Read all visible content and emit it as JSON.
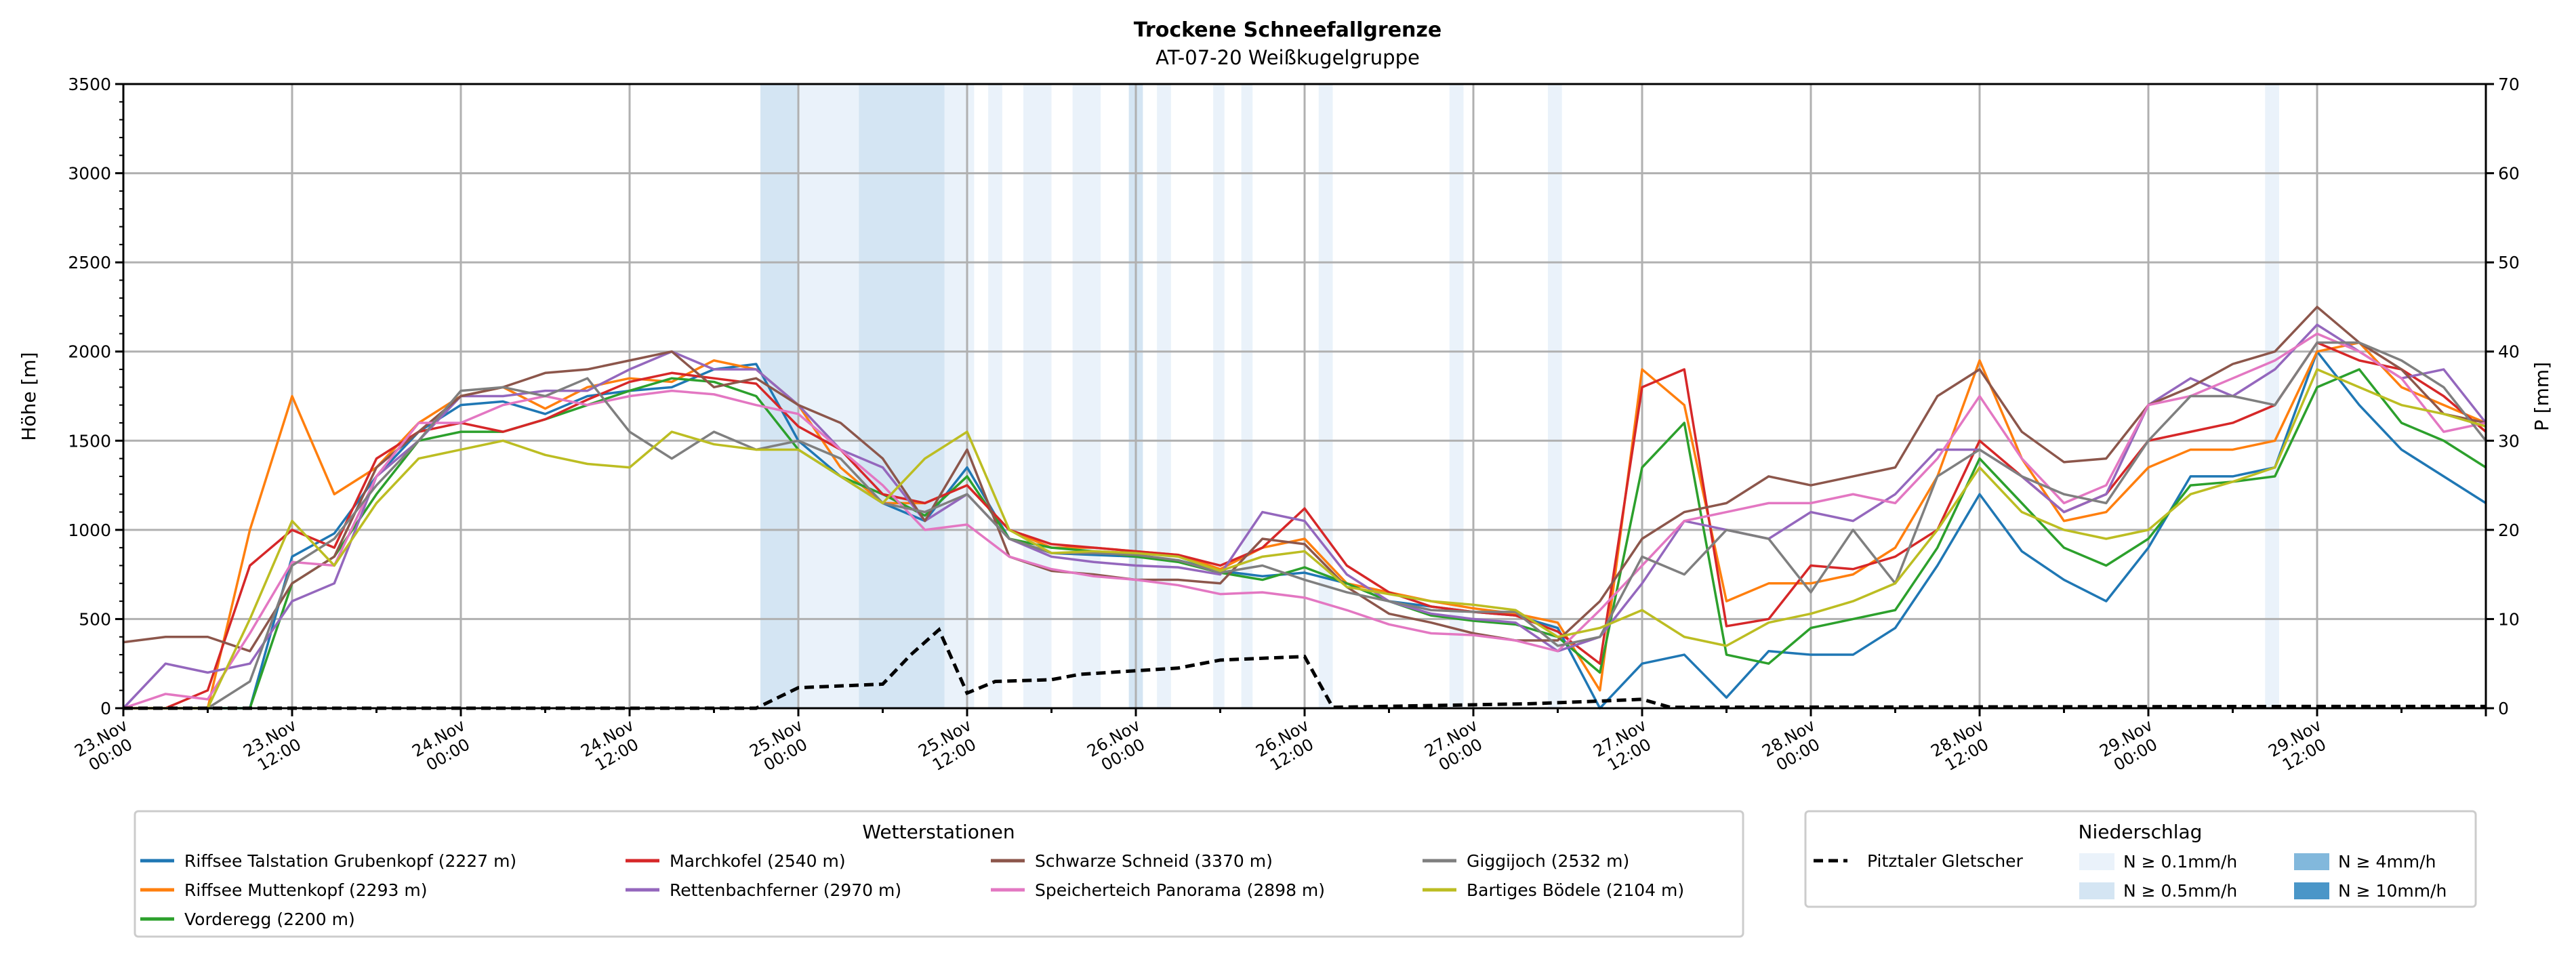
{
  "chart_data": {
    "type": "line",
    "title": "Trockene Schneefallgrenze",
    "subtitle": "AT-07-20 Weißkugelgruppe",
    "ylabel": "Höhe [m]",
    "ylabel_right": "P [mm]",
    "ylim": [
      0,
      3500
    ],
    "ylim_right": [
      0,
      70
    ],
    "yticks": [
      0,
      500,
      1000,
      1500,
      2000,
      2500,
      3000,
      3500
    ],
    "yticks_right": [
      0,
      10,
      20,
      30,
      40,
      50,
      60,
      70
    ],
    "x_unit": "hours since 23.Nov 00:00",
    "xlim": [
      0,
      168
    ],
    "xticks": [
      {
        "h": 0,
        "l1": "23.Nov",
        "l2": "00:00"
      },
      {
        "h": 12,
        "l1": "23.Nov",
        "l2": "12:00"
      },
      {
        "h": 24,
        "l1": "24.Nov",
        "l2": "00:00"
      },
      {
        "h": 36,
        "l1": "24.Nov",
        "l2": "12:00"
      },
      {
        "h": 48,
        "l1": "25.Nov",
        "l2": "00:00"
      },
      {
        "h": 60,
        "l1": "25.Nov",
        "l2": "12:00"
      },
      {
        "h": 72,
        "l1": "26.Nov",
        "l2": "00:00"
      },
      {
        "h": 84,
        "l1": "26.Nov",
        "l2": "12:00"
      },
      {
        "h": 96,
        "l1": "27.Nov",
        "l2": "00:00"
      },
      {
        "h": 108,
        "l1": "27.Nov",
        "l2": "12:00"
      },
      {
        "h": 120,
        "l1": "28.Nov",
        "l2": "00:00"
      },
      {
        "h": 132,
        "l1": "28.Nov",
        "l2": "12:00"
      },
      {
        "h": 144,
        "l1": "29.Nov",
        "l2": "00:00"
      },
      {
        "h": 156,
        "l1": "29.Nov",
        "l2": "12:00"
      }
    ],
    "grid": true,
    "x_step_hours": 3,
    "series": [
      {
        "name": "Riffsee Talstation Grubenkopf (2227 m)",
        "color": "#1f77b4",
        "values": [
          0,
          0,
          0,
          0,
          850,
          980,
          1300,
          1550,
          1700,
          1720,
          1650,
          1750,
          1780,
          1800,
          1900,
          1930,
          1500,
          1300,
          1150,
          1050,
          1350,
          950,
          870,
          860,
          850,
          830,
          770,
          740,
          760,
          700,
          600,
          570,
          540,
          520,
          450,
          0,
          250,
          300,
          60,
          320,
          300,
          300,
          450,
          800,
          1200,
          880,
          720,
          600,
          900,
          1300,
          1300,
          1350,
          2000,
          1700,
          1450,
          1300,
          1150
        ]
      },
      {
        "name": "Riffsee Muttenkopf (2293 m)",
        "color": "#ff7f0e",
        "values": [
          0,
          0,
          0,
          1000,
          1750,
          1200,
          1350,
          1600,
          1750,
          1800,
          1680,
          1800,
          1850,
          1830,
          1950,
          1900,
          1700,
          1350,
          1150,
          1150,
          1250,
          1000,
          900,
          900,
          880,
          860,
          780,
          900,
          950,
          700,
          650,
          600,
          560,
          530,
          480,
          100,
          1900,
          1700,
          600,
          700,
          700,
          750,
          900,
          1300,
          1950,
          1400,
          1050,
          1100,
          1350,
          1450,
          1450,
          1500,
          2000,
          2050,
          1800,
          1700,
          1600
        ]
      },
      {
        "name": "Vorderegg (2200 m)",
        "color": "#2ca02c",
        "values": [
          0,
          0,
          0,
          0,
          700,
          850,
          1200,
          1500,
          1550,
          1550,
          1620,
          1700,
          1780,
          1850,
          1830,
          1750,
          1450,
          1300,
          1200,
          1080,
          1300,
          950,
          900,
          880,
          850,
          820,
          760,
          720,
          790,
          700,
          600,
          520,
          490,
          470,
          400,
          200,
          1350,
          1600,
          300,
          250,
          450,
          500,
          550,
          900,
          1400,
          1150,
          900,
          800,
          950,
          1250,
          1270,
          1300,
          1800,
          1900,
          1600,
          1500,
          1350
        ]
      },
      {
        "name": "Marchkofel (2540 m)",
        "color": "#d62728",
        "values": [
          0,
          0,
          100,
          800,
          1000,
          900,
          1400,
          1550,
          1600,
          1550,
          1620,
          1730,
          1830,
          1880,
          1850,
          1820,
          1580,
          1450,
          1200,
          1150,
          1250,
          1000,
          920,
          900,
          880,
          860,
          800,
          900,
          1120,
          800,
          650,
          570,
          540,
          520,
          430,
          250,
          1800,
          1900,
          460,
          500,
          800,
          780,
          850,
          1000,
          1500,
          1300,
          1100,
          1200,
          1500,
          1550,
          1600,
          1700,
          2050,
          1950,
          1900,
          1750,
          1550
        ]
      },
      {
        "name": "Rettenbachferner (2970 m)",
        "color": "#9467bd",
        "values": [
          0,
          250,
          200,
          250,
          600,
          700,
          1300,
          1500,
          1750,
          1750,
          1780,
          1780,
          1900,
          2000,
          1900,
          1900,
          1700,
          1450,
          1350,
          1050,
          1200,
          950,
          850,
          820,
          800,
          790,
          750,
          1100,
          1050,
          750,
          600,
          530,
          500,
          480,
          320,
          400,
          700,
          1050,
          1000,
          950,
          1100,
          1050,
          1200,
          1450,
          1450,
          1300,
          1100,
          1200,
          1700,
          1850,
          1750,
          1900,
          2150,
          2000,
          1850,
          1900,
          1600
        ]
      },
      {
        "name": "Schwarze Schneid (3370 m)",
        "color": "#8c564b",
        "values": [
          370,
          400,
          400,
          320,
          700,
          850,
          1350,
          1550,
          1750,
          1800,
          1880,
          1900,
          1950,
          2000,
          1800,
          1850,
          1700,
          1600,
          1400,
          1050,
          1450,
          850,
          770,
          750,
          720,
          720,
          700,
          950,
          920,
          680,
          530,
          480,
          420,
          380,
          380,
          600,
          950,
          1100,
          1150,
          1300,
          1250,
          1300,
          1350,
          1750,
          1900,
          1550,
          1380,
          1400,
          1700,
          1800,
          1930,
          2000,
          2250,
          2050,
          1900,
          1650,
          1600
        ]
      },
      {
        "name": "Speicherteich Panorama (2898 m)",
        "color": "#e377c2",
        "values": [
          0,
          80,
          50,
          420,
          820,
          800,
          1300,
          1600,
          1600,
          1700,
          1750,
          1700,
          1750,
          1780,
          1760,
          1700,
          1650,
          1450,
          1250,
          1000,
          1030,
          850,
          780,
          740,
          720,
          690,
          640,
          650,
          620,
          550,
          470,
          420,
          410,
          380,
          320,
          550,
          800,
          1050,
          1100,
          1150,
          1150,
          1200,
          1150,
          1400,
          1750,
          1400,
          1150,
          1250,
          1700,
          1750,
          1850,
          1950,
          2100,
          2000,
          1850,
          1550,
          1600
        ]
      },
      {
        "name": "Giggijoch (2532 m)",
        "color": "#7f7f7f",
        "values": [
          0,
          0,
          0,
          150,
          800,
          950,
          1250,
          1500,
          1780,
          1800,
          1750,
          1850,
          1550,
          1400,
          1550,
          1450,
          1500,
          1400,
          1150,
          1100,
          1200,
          950,
          870,
          870,
          860,
          830,
          760,
          800,
          720,
          650,
          600,
          550,
          540,
          540,
          350,
          400,
          850,
          750,
          1000,
          950,
          650,
          1000,
          700,
          1300,
          1450,
          1300,
          1200,
          1150,
          1500,
          1750,
          1750,
          1700,
          2050,
          2050,
          1950,
          1800,
          1500
        ]
      },
      {
        "name": "Bartiges Bödele (2104 m)",
        "color": "#bcbd22",
        "values": [
          0,
          0,
          0,
          500,
          1050,
          800,
          1150,
          1400,
          1450,
          1500,
          1420,
          1370,
          1350,
          1550,
          1480,
          1450,
          1450,
          1300,
          1150,
          1400,
          1550,
          1000,
          870,
          880,
          870,
          850,
          770,
          850,
          880,
          680,
          640,
          600,
          580,
          550,
          400,
          450,
          550,
          400,
          350,
          480,
          530,
          600,
          700,
          1000,
          1350,
          1100,
          1000,
          950,
          1000,
          1200,
          1270,
          1350,
          1900,
          1800,
          1700,
          1650,
          1580
        ]
      }
    ],
    "precip_series": {
      "name": "Pitztaler Gletscher",
      "color": "#000000",
      "unit": "mm",
      "axis": "right",
      "points": [
        [
          0,
          0
        ],
        [
          45,
          0
        ],
        [
          48,
          2.3
        ],
        [
          54,
          2.7
        ],
        [
          56,
          6
        ],
        [
          58,
          8.8
        ],
        [
          60,
          1.7
        ],
        [
          62,
          3
        ],
        [
          66,
          3.2
        ],
        [
          68,
          3.8
        ],
        [
          72,
          4.2
        ],
        [
          75,
          4.5
        ],
        [
          78,
          5.4
        ],
        [
          84,
          5.8
        ],
        [
          86,
          0.1
        ],
        [
          93,
          0.3
        ],
        [
          100,
          0.5
        ],
        [
          105,
          0.8
        ],
        [
          108,
          1
        ],
        [
          110,
          0.1
        ],
        [
          156,
          0.2
        ],
        [
          168,
          0.2
        ]
      ]
    },
    "precip_bands": [
      {
        "start": 45.3,
        "end": 48,
        "level": "N≥0.5mm/h"
      },
      {
        "start": 48,
        "end": 52.3,
        "level": "N≥0.1mm/h"
      },
      {
        "start": 52.3,
        "end": 58.4,
        "level": "N≥0.5mm/h"
      },
      {
        "start": 58.4,
        "end": 60.5,
        "level": "N≥0.1mm/h"
      },
      {
        "start": 61.5,
        "end": 62.5,
        "level": "N≥0.1mm/h"
      },
      {
        "start": 64,
        "end": 66,
        "level": "N≥0.1mm/h"
      },
      {
        "start": 67.5,
        "end": 69.5,
        "level": "N≥0.1mm/h"
      },
      {
        "start": 71.5,
        "end": 72.5,
        "level": "N≥0.5mm/h"
      },
      {
        "start": 73.5,
        "end": 74.5,
        "level": "N≥0.1mm/h"
      },
      {
        "start": 77.5,
        "end": 78.3,
        "level": "N≥0.1mm/h"
      },
      {
        "start": 79.5,
        "end": 80.3,
        "level": "N≥0.1mm/h"
      },
      {
        "start": 85,
        "end": 86,
        "level": "N≥0.1mm/h"
      },
      {
        "start": 94.3,
        "end": 95.3,
        "level": "N≥0.1mm/h"
      },
      {
        "start": 101.3,
        "end": 102.3,
        "level": "N≥0.1mm/h"
      },
      {
        "start": 152.3,
        "end": 153.3,
        "level": "N≥0.1mm/h"
      }
    ],
    "legend_stations_title": "Wetterstationen",
    "legend_precip_title": "Niederschlag",
    "legend_placement": "bottom",
    "precip_levels": [
      {
        "label": "N ≥ 0.1mm/h",
        "key": "N≥0.1mm/h",
        "color": "#eaf2fa"
      },
      {
        "label": "N ≥ 0.5mm/h",
        "key": "N≥0.5mm/h",
        "color": "#d4e5f3"
      },
      {
        "label": "N ≥ 4mm/h",
        "key": "N≥4mm/h",
        "color": "#82b8dc"
      },
      {
        "label": "N ≥ 10mm/h",
        "key": "N≥10mm/h",
        "color": "#4a96c8"
      }
    ]
  }
}
